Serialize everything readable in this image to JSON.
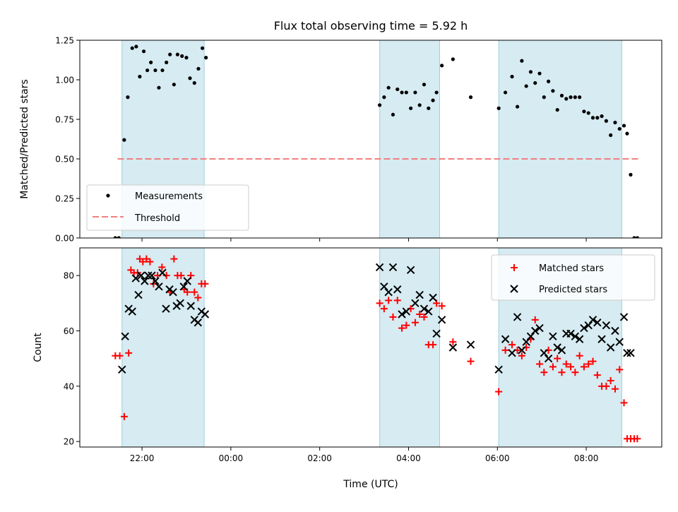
{
  "chart_data": [
    {
      "type": "scatter",
      "title": "Flux total observing time = 5.92 h",
      "xlabel": "",
      "ylabel": "Matched/Predicted stars",
      "x_axis": "time (hours UTC, continuing past midnight)",
      "xlim": [
        20.6,
        33.7
      ],
      "ylim": [
        0,
        1.25
      ],
      "yticks": [
        0.0,
        0.25,
        0.5,
        0.75,
        1.0,
        1.25
      ],
      "ytick_labels": [
        "0.00",
        "0.25",
        "0.50",
        "0.75",
        "1.00",
        "1.25"
      ],
      "shaded_intervals": [
        [
          21.55,
          23.4
        ],
        [
          27.35,
          28.7
        ],
        [
          30.03,
          32.8
        ]
      ],
      "threshold": {
        "name": "Threshold",
        "value": 0.5,
        "x_range": [
          21.45,
          33.2
        ],
        "color": "#f08080"
      },
      "legend": {
        "position": "lower-left",
        "entries": [
          "Measurements",
          "Threshold"
        ]
      },
      "series": [
        {
          "name": "Measurements",
          "marker": "dot",
          "color": "#000000",
          "x": [
            21.4,
            21.48,
            21.6,
            21.68,
            21.78,
            21.87,
            21.95,
            22.04,
            22.12,
            22.2,
            22.3,
            22.38,
            22.46,
            22.55,
            22.63,
            22.72,
            22.8,
            22.9,
            23.0,
            23.08,
            23.18,
            23.27,
            23.36,
            23.44,
            27.35,
            27.45,
            27.55,
            27.65,
            27.75,
            27.85,
            27.95,
            28.05,
            28.15,
            28.25,
            28.35,
            28.45,
            28.55,
            28.63,
            28.75,
            29.0,
            29.4,
            30.03,
            30.18,
            30.33,
            30.45,
            30.55,
            30.65,
            30.75,
            30.85,
            30.95,
            31.05,
            31.15,
            31.25,
            31.35,
            31.45,
            31.55,
            31.65,
            31.75,
            31.85,
            31.95,
            32.05,
            32.15,
            32.25,
            32.35,
            32.45,
            32.55,
            32.65,
            32.75,
            32.85,
            32.92,
            33.0,
            33.08,
            33.15
          ],
          "y": [
            0.0,
            0.0,
            0.62,
            0.89,
            1.2,
            1.21,
            1.02,
            1.18,
            1.06,
            1.11,
            1.06,
            0.95,
            1.06,
            1.11,
            1.16,
            0.97,
            1.16,
            1.15,
            1.14,
            1.01,
            0.98,
            1.07,
            1.2,
            1.14,
            0.84,
            0.89,
            0.95,
            0.78,
            0.94,
            0.92,
            0.92,
            0.82,
            0.92,
            0.84,
            0.97,
            0.82,
            0.87,
            0.92,
            1.09,
            1.13,
            0.89,
            0.82,
            0.92,
            1.02,
            0.83,
            1.12,
            0.96,
            1.05,
            0.98,
            1.04,
            0.89,
            0.99,
            0.93,
            0.81,
            0.9,
            0.88,
            0.89,
            0.89,
            0.89,
            0.8,
            0.79,
            0.76,
            0.76,
            0.77,
            0.74,
            0.65,
            0.73,
            0.69,
            0.71,
            0.66,
            0.4,
            0.0,
            0.0
          ]
        }
      ]
    },
    {
      "type": "scatter",
      "title": "",
      "xlabel": "Time (UTC)",
      "ylabel": "Count",
      "xlim": [
        20.6,
        33.7
      ],
      "ylim": [
        18,
        90
      ],
      "yticks": [
        20,
        40,
        60,
        80
      ],
      "ytick_labels": [
        "20",
        "40",
        "60",
        "80"
      ],
      "xticks": [
        22,
        24,
        26,
        28,
        30,
        32
      ],
      "xtick_labels": [
        "22:00",
        "00:00",
        "02:00",
        "04:00",
        "06:00",
        "08:00"
      ],
      "shaded_intervals": [
        [
          21.55,
          23.4
        ],
        [
          27.35,
          28.7
        ],
        [
          30.03,
          32.8
        ]
      ],
      "legend": {
        "position": "upper-right",
        "entries": [
          "Matched stars",
          "Predicted stars"
        ]
      },
      "series": [
        {
          "name": "Matched stars",
          "marker": "plus",
          "color": "#ff0000",
          "x": [
            21.4,
            21.5,
            21.6,
            21.7,
            21.75,
            21.82,
            21.9,
            21.95,
            22.02,
            22.1,
            22.18,
            22.26,
            22.35,
            22.45,
            22.55,
            22.63,
            22.72,
            22.8,
            22.88,
            22.95,
            23.02,
            23.1,
            23.18,
            23.26,
            23.34,
            23.42,
            27.35,
            27.45,
            27.55,
            27.65,
            27.75,
            27.85,
            27.95,
            28.05,
            28.15,
            28.25,
            28.35,
            28.45,
            28.55,
            28.63,
            28.75,
            29.0,
            29.4,
            30.03,
            30.18,
            30.33,
            30.45,
            30.55,
            30.65,
            30.75,
            30.85,
            30.95,
            31.05,
            31.15,
            31.25,
            31.35,
            31.45,
            31.55,
            31.65,
            31.75,
            31.85,
            31.95,
            32.05,
            32.15,
            32.25,
            32.35,
            32.45,
            32.55,
            32.65,
            32.75,
            32.85,
            32.92,
            33.0,
            33.08,
            33.15
          ],
          "y": [
            51,
            51,
            29,
            52,
            82,
            81,
            81,
            86,
            85,
            86,
            85,
            77,
            80,
            83,
            80,
            74,
            86,
            80,
            80,
            75,
            74,
            80,
            74,
            72,
            77,
            77,
            70,
            68,
            71,
            65,
            71,
            61,
            62,
            68,
            63,
            66,
            65,
            55,
            55,
            70,
            69,
            56,
            49,
            38,
            53,
            55,
            53,
            51,
            54,
            57,
            64,
            48,
            45,
            53,
            47,
            50,
            45,
            48,
            47,
            45,
            51,
            47,
            48,
            49,
            44,
            40,
            40,
            42,
            39,
            46,
            34,
            21,
            21,
            21,
            21
          ]
        },
        {
          "name": "Predicted stars",
          "marker": "x",
          "color": "#000000",
          "x": [
            21.55,
            21.62,
            21.7,
            21.78,
            21.86,
            21.92,
            21.98,
            22.06,
            22.14,
            22.22,
            22.3,
            22.38,
            22.46,
            22.54,
            22.62,
            22.7,
            22.78,
            22.86,
            22.94,
            23.02,
            23.1,
            23.18,
            23.26,
            23.34,
            23.42,
            27.35,
            27.45,
            27.55,
            27.65,
            27.75,
            27.85,
            27.95,
            28.05,
            28.15,
            28.25,
            28.35,
            28.45,
            28.55,
            28.63,
            28.75,
            29.0,
            29.4,
            30.03,
            30.18,
            30.33,
            30.45,
            30.55,
            30.65,
            30.75,
            30.85,
            30.95,
            31.05,
            31.15,
            31.25,
            31.35,
            31.45,
            31.55,
            31.65,
            31.75,
            31.85,
            31.95,
            32.05,
            32.15,
            32.25,
            32.35,
            32.45,
            32.55,
            32.65,
            32.75,
            32.85,
            32.92,
            33.0
          ],
          "y": [
            46,
            58,
            68,
            67,
            79,
            73,
            80,
            78,
            80,
            80,
            78,
            76,
            81,
            68,
            75,
            74,
            69,
            70,
            76,
            78,
            69,
            64,
            63,
            67,
            66,
            83,
            76,
            74,
            83,
            75,
            66,
            67,
            82,
            70,
            73,
            68,
            67,
            72,
            59,
            64,
            54,
            55,
            46,
            57,
            52,
            65,
            53,
            56,
            58,
            60,
            61,
            52,
            50,
            58,
            54,
            53,
            59,
            59,
            58,
            57,
            61,
            62,
            64,
            63,
            57,
            62,
            54,
            60,
            56,
            65,
            52,
            52
          ]
        }
      ]
    }
  ]
}
